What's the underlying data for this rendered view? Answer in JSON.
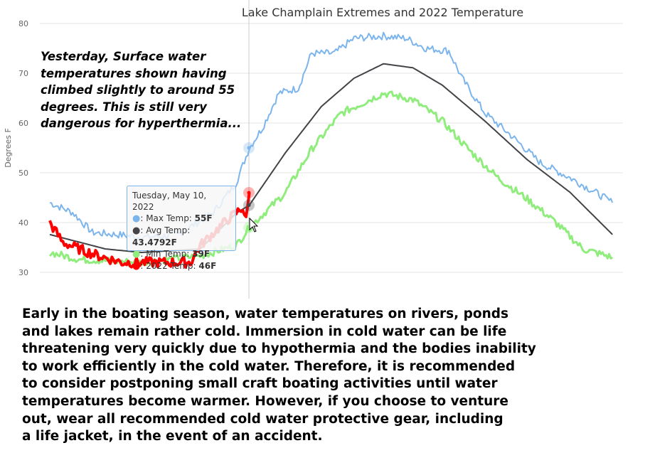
{
  "chart_data": {
    "type": "line",
    "title": "Lake Champlain Extremes and 2022 Temperature",
    "xlabel": "",
    "ylabel": "Degrees F",
    "ylim": [
      30,
      80
    ],
    "yticks": [
      30,
      40,
      50,
      60,
      70,
      80
    ],
    "grid": true,
    "x_unit": "day index",
    "series": [
      {
        "name": "Max Temp",
        "color": "#7cb5ec",
        "width": 2,
        "points": [
          [
            0,
            44
          ],
          [
            7,
            42
          ],
          [
            13,
            38
          ],
          [
            22,
            37.5
          ],
          [
            28,
            37
          ],
          [
            39,
            37.5
          ],
          [
            50,
            42
          ],
          [
            57,
            48
          ],
          [
            61,
            55
          ],
          [
            65,
            59
          ],
          [
            70,
            66
          ],
          [
            76,
            67
          ],
          [
            80,
            74
          ],
          [
            87,
            74
          ],
          [
            93,
            77
          ],
          [
            102,
            77.5
          ],
          [
            109,
            77
          ],
          [
            115,
            75
          ],
          [
            122,
            74.5
          ],
          [
            126,
            69
          ],
          [
            133,
            62
          ],
          [
            141,
            57.5
          ],
          [
            150,
            52
          ],
          [
            159,
            49
          ],
          [
            167,
            46
          ],
          [
            172,
            44
          ]
        ]
      },
      {
        "name": "Avg Temp",
        "color": "#434348",
        "width": 2,
        "points": [
          [
            0,
            37.6
          ],
          [
            17,
            34.7
          ],
          [
            28,
            34
          ],
          [
            46,
            34.7
          ],
          [
            57,
            41.9
          ],
          [
            61,
            43.5
          ],
          [
            72,
            54
          ],
          [
            83,
            63.3
          ],
          [
            93,
            69
          ],
          [
            102,
            71.9
          ],
          [
            111,
            71.1
          ],
          [
            120,
            67.6
          ],
          [
            133,
            60.4
          ],
          [
            146,
            52.6
          ],
          [
            159,
            46.1
          ],
          [
            172,
            37.6
          ]
        ]
      },
      {
        "name": "Min Temp",
        "color": "#90ed7d",
        "width": 3,
        "points": [
          [
            0,
            34
          ],
          [
            9,
            32.6
          ],
          [
            28,
            32
          ],
          [
            46,
            33.3
          ],
          [
            57,
            35.4
          ],
          [
            61,
            39
          ],
          [
            72,
            46
          ],
          [
            80,
            54.7
          ],
          [
            89,
            61.9
          ],
          [
            102,
            66
          ],
          [
            111,
            64.7
          ],
          [
            120,
            60.4
          ],
          [
            128,
            54.7
          ],
          [
            137,
            49
          ],
          [
            146,
            44.7
          ],
          [
            154,
            40.4
          ],
          [
            163,
            34.7
          ],
          [
            172,
            33
          ]
        ]
      },
      {
        "name": "2022 Temp",
        "color": "#ff0000",
        "width": 4,
        "points": [
          [
            0,
            40
          ],
          [
            4,
            36
          ],
          [
            9,
            34.7
          ],
          [
            15,
            33.3
          ],
          [
            22,
            32
          ],
          [
            43,
            32
          ],
          [
            46,
            35.4
          ],
          [
            54,
            40.4
          ],
          [
            59,
            43
          ],
          [
            60,
            40.4
          ],
          [
            61,
            46
          ]
        ]
      }
    ]
  },
  "note": "Yesterday, Surface water temperatures shown having climbed slightly to around 55 degrees. This is still very dangerous for hyperthermia...",
  "tooltip": {
    "date": "Tuesday, May 10, 2022",
    "rows": [
      {
        "label": ": Max Temp: ",
        "value": "55F",
        "color": "#7cb5ec"
      },
      {
        "label": ": Avg Temp: ",
        "value": "43.4792F",
        "color": "#434348"
      },
      {
        "label": ": Min Temp: ",
        "value": "39F",
        "color": "#90ed7d"
      },
      {
        "label": ": 2022 Temp: ",
        "value": "46F",
        "color": "#ff0000"
      }
    ]
  },
  "body": "Early in the boating season, water temperatures on rivers, ponds\nand lakes remain rather cold. Immersion in cold water can be life\nthreatening very quickly due to hypothermia and the bodies inability\nto work efficiently in the cold water. Therefore, it is recommended\nto consider postponing small craft boating activities until water\ntemperatures become warmer. However, if you choose to venture\nout, wear all recommended cold water protective gear, including\na life jacket, in the event of an accident."
}
